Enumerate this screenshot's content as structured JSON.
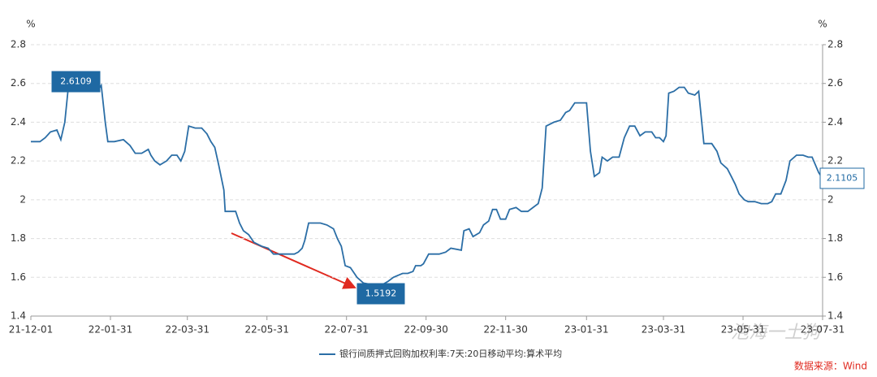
{
  "chart_data": {
    "type": "line",
    "y_unit": "%",
    "y2_unit": "%",
    "x": [
      "21-12-01",
      "21-12-08",
      "21-12-12",
      "21-12-16",
      "21-12-21",
      "21-12-24",
      "21-12-27",
      "21-12-30",
      "22-01-05",
      "22-01-15",
      "22-01-21",
      "22-01-24",
      "22-01-27",
      "22-01-29",
      "22-02-03",
      "22-02-10",
      "22-02-15",
      "22-02-19",
      "22-02-24",
      "22-03-01",
      "22-03-03",
      "22-03-06",
      "22-03-10",
      "22-03-15",
      "22-03-19",
      "22-03-23",
      "22-03-26",
      "22-03-29",
      "22-04-01",
      "22-04-06",
      "22-04-11",
      "22-04-15",
      "22-04-18",
      "22-04-21",
      "22-04-24",
      "22-04-28",
      "22-04-29",
      "22-05-07",
      "22-05-10",
      "22-05-13",
      "22-05-17",
      "22-05-21",
      "22-05-27",
      "22-06-01",
      "22-06-05",
      "22-06-13",
      "22-06-21",
      "22-06-24",
      "22-06-27",
      "22-06-29",
      "22-07-02",
      "22-07-11",
      "22-07-16",
      "22-07-21",
      "22-07-24",
      "22-07-27",
      "22-07-30",
      "22-08-03",
      "22-08-06",
      "22-08-08",
      "22-08-13",
      "22-08-21",
      "22-08-27",
      "22-09-01",
      "22-09-05",
      "22-09-12",
      "22-09-16",
      "22-09-20",
      "22-09-22",
      "22-09-26",
      "22-09-28",
      "22-10-02",
      "22-10-10",
      "22-10-15",
      "22-10-19",
      "22-10-27",
      "22-10-29",
      "22-11-02",
      "22-11-05",
      "22-11-10",
      "22-11-13",
      "22-11-17",
      "22-11-20",
      "22-11-23",
      "22-11-26",
      "22-11-30",
      "22-12-03",
      "22-12-08",
      "22-12-12",
      "22-12-17",
      "22-12-21",
      "22-12-25",
      "22-12-28",
      "22-12-31",
      "23-01-06",
      "23-01-11",
      "23-01-15",
      "23-01-18",
      "23-01-22",
      "23-01-31",
      "23-02-03",
      "23-02-06",
      "23-02-10",
      "23-02-12",
      "23-02-16",
      "23-02-20",
      "23-02-25",
      "23-03-01",
      "23-03-05",
      "23-03-09",
      "23-03-13",
      "23-03-17",
      "23-03-22",
      "23-03-25",
      "23-03-28",
      "23-03-31",
      "23-04-02",
      "23-04-04",
      "23-04-08",
      "23-04-12",
      "23-04-16",
      "23-04-19",
      "23-04-24",
      "23-04-27",
      "23-05-01",
      "23-05-07",
      "23-05-11",
      "23-05-14",
      "23-05-19",
      "23-05-22",
      "23-05-25",
      "23-05-28",
      "23-06-01",
      "23-06-04",
      "23-06-09",
      "23-06-14",
      "23-06-19",
      "23-06-22",
      "23-06-25",
      "23-06-29",
      "23-07-03",
      "23-07-06",
      "23-07-11",
      "23-07-16",
      "23-07-20",
      "23-07-23",
      "23-07-28",
      "23-07-31"
    ],
    "series": [
      {
        "name": "银行间质押式回购加权利率:7天:20日移动平均:算术平均",
        "color": "#2b6ea6",
        "values": [
          2.3,
          2.3,
          2.32,
          2.35,
          2.36,
          2.31,
          2.4,
          2.6,
          2.58,
          2.56,
          2.56,
          2.59,
          2.4,
          2.3,
          2.3,
          2.31,
          2.28,
          2.24,
          2.24,
          2.26,
          2.23,
          2.2,
          2.18,
          2.2,
          2.23,
          2.23,
          2.2,
          2.25,
          2.38,
          2.37,
          2.37,
          2.34,
          2.3,
          2.27,
          2.18,
          2.05,
          1.94,
          1.94,
          1.88,
          1.84,
          1.82,
          1.78,
          1.76,
          1.75,
          1.72,
          1.72,
          1.72,
          1.73,
          1.75,
          1.79,
          1.88,
          1.88,
          1.87,
          1.85,
          1.8,
          1.76,
          1.66,
          1.65,
          1.62,
          1.6,
          1.57,
          1.56,
          1.56,
          1.58,
          1.6,
          1.62,
          1.62,
          1.63,
          1.66,
          1.66,
          1.67,
          1.72,
          1.72,
          1.73,
          1.75,
          1.74,
          1.84,
          1.85,
          1.81,
          1.83,
          1.87,
          1.89,
          1.95,
          1.95,
          1.9,
          1.9,
          1.95,
          1.96,
          1.94,
          1.94,
          1.96,
          1.98,
          2.06,
          2.38,
          2.4,
          2.41,
          2.45,
          2.46,
          2.5,
          2.5,
          2.25,
          2.12,
          2.14,
          2.22,
          2.2,
          2.22,
          2.22,
          2.32,
          2.38,
          2.38,
          2.33,
          2.35,
          2.35,
          2.32,
          2.32,
          2.3,
          2.33,
          2.55,
          2.56,
          2.58,
          2.58,
          2.55,
          2.54,
          2.56,
          2.29,
          2.29,
          2.25,
          2.19,
          2.16,
          2.12,
          2.08,
          2.03,
          2.0,
          1.99,
          1.99,
          1.98,
          1.98,
          1.99,
          2.03,
          2.03,
          2.1,
          2.2,
          2.23,
          2.23,
          2.22,
          2.22,
          2.14,
          2.11
        ]
      }
    ],
    "xlim": [
      "21-12-01",
      "23-07-31"
    ],
    "xticks": [
      "21-12-01",
      "22-01-31",
      "22-03-31",
      "22-05-31",
      "22-07-31",
      "22-09-30",
      "22-11-30",
      "23-01-31",
      "23-03-31",
      "23-05-31",
      "23-07-31"
    ],
    "ylim": [
      1.4,
      2.8
    ],
    "yticks": [
      1.4,
      1.6,
      1.8,
      2,
      2.2,
      2.4,
      2.6,
      2.8
    ],
    "y2lim": [
      1.4,
      2.8
    ],
    "y2ticks": [
      1.4,
      1.6,
      1.8,
      2,
      2.2,
      2.4,
      2.6,
      2.8
    ],
    "grid": true,
    "annotations": [
      "2.6109",
      "1.5192",
      "2.1105"
    ],
    "watermark": "泡海一土狗",
    "source": "数据来源：Wind"
  }
}
